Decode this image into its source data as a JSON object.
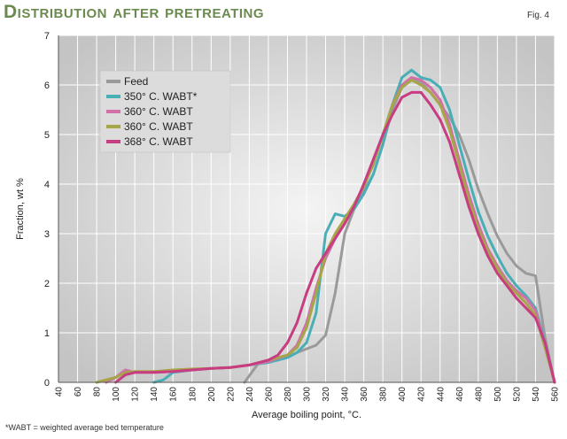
{
  "header": {
    "title": "Distribution after pretreating",
    "figure_label": "Fig. 4"
  },
  "footnote": "*WABT = weighted average bed temperature",
  "colors": {
    "plot_gradient_center": "#f4f4f4",
    "plot_gradient_edge": "#c4c4c4",
    "grid": "#ffffff",
    "title": "#6b8a4f",
    "legend_bg": "#dcdcdc"
  },
  "chart_data": {
    "type": "line",
    "title": "Distribution after pretreating",
    "xlabel": "Average boiling point, °C.",
    "ylabel": "Fraction, wt %",
    "xlim": [
      40,
      560
    ],
    "ylim": [
      0,
      7
    ],
    "x_ticks": [
      "40",
      "60",
      "80",
      "100",
      "120",
      "140",
      "160",
      "180",
      "200",
      "220",
      "240",
      "260",
      "280",
      "300",
      "320",
      "340",
      "360",
      "380",
      "400",
      "420",
      "440",
      "460",
      "480",
      "500",
      "520",
      "540",
      "560"
    ],
    "y_ticks": [
      "0",
      "1",
      "2",
      "3",
      "4",
      "5",
      "6",
      "7"
    ],
    "grid": true,
    "legend_position": "top-left",
    "series": [
      {
        "name": "Feed",
        "color": "#9a9a9a",
        "points": [
          [
            235,
            0
          ],
          [
            250,
            0.4
          ],
          [
            270,
            0.45
          ],
          [
            290,
            0.6
          ],
          [
            310,
            0.75
          ],
          [
            320,
            0.95
          ],
          [
            330,
            1.8
          ],
          [
            340,
            3.0
          ],
          [
            350,
            3.5
          ],
          [
            360,
            3.85
          ],
          [
            370,
            4.2
          ],
          [
            380,
            4.8
          ],
          [
            390,
            5.5
          ],
          [
            400,
            5.95
          ],
          [
            410,
            6.1
          ],
          [
            420,
            6.05
          ],
          [
            430,
            5.85
          ],
          [
            440,
            5.6
          ],
          [
            450,
            5.35
          ],
          [
            460,
            5.0
          ],
          [
            470,
            4.5
          ],
          [
            480,
            3.9
          ],
          [
            490,
            3.4
          ],
          [
            500,
            2.95
          ],
          [
            510,
            2.6
          ],
          [
            520,
            2.35
          ],
          [
            530,
            2.2
          ],
          [
            540,
            2.15
          ],
          [
            550,
            0.9
          ],
          [
            560,
            0
          ]
        ]
      },
      {
        "name": "350° C. WABT*",
        "color": "#4aaeb6",
        "points": [
          [
            140,
            0
          ],
          [
            150,
            0.05
          ],
          [
            160,
            0.2
          ],
          [
            180,
            0.25
          ],
          [
            200,
            0.28
          ],
          [
            220,
            0.3
          ],
          [
            240,
            0.35
          ],
          [
            260,
            0.4
          ],
          [
            280,
            0.5
          ],
          [
            290,
            0.6
          ],
          [
            300,
            0.8
          ],
          [
            310,
            1.4
          ],
          [
            320,
            3.0
          ],
          [
            330,
            3.4
          ],
          [
            340,
            3.35
          ],
          [
            350,
            3.5
          ],
          [
            360,
            3.8
          ],
          [
            370,
            4.2
          ],
          [
            380,
            4.8
          ],
          [
            390,
            5.6
          ],
          [
            400,
            6.15
          ],
          [
            410,
            6.3
          ],
          [
            420,
            6.15
          ],
          [
            430,
            6.1
          ],
          [
            440,
            5.95
          ],
          [
            450,
            5.5
          ],
          [
            460,
            4.8
          ],
          [
            470,
            4.1
          ],
          [
            480,
            3.45
          ],
          [
            490,
            2.95
          ],
          [
            500,
            2.55
          ],
          [
            510,
            2.2
          ],
          [
            520,
            1.95
          ],
          [
            530,
            1.75
          ],
          [
            540,
            1.5
          ],
          [
            550,
            0.8
          ],
          [
            560,
            0
          ]
        ]
      },
      {
        "name": "360° C. WABT",
        "color": "#d070a8",
        "points": [
          [
            90,
            0
          ],
          [
            100,
            0.1
          ],
          [
            110,
            0.25
          ],
          [
            120,
            0.2
          ],
          [
            140,
            0.2
          ],
          [
            160,
            0.22
          ],
          [
            180,
            0.25
          ],
          [
            200,
            0.28
          ],
          [
            220,
            0.3
          ],
          [
            240,
            0.35
          ],
          [
            260,
            0.42
          ],
          [
            280,
            0.55
          ],
          [
            290,
            0.75
          ],
          [
            300,
            1.2
          ],
          [
            310,
            1.9
          ],
          [
            320,
            2.5
          ],
          [
            330,
            2.9
          ],
          [
            340,
            3.3
          ],
          [
            350,
            3.6
          ],
          [
            360,
            3.95
          ],
          [
            370,
            4.4
          ],
          [
            380,
            5.0
          ],
          [
            390,
            5.6
          ],
          [
            400,
            6.0
          ],
          [
            410,
            6.15
          ],
          [
            420,
            6.1
          ],
          [
            430,
            5.95
          ],
          [
            440,
            5.7
          ],
          [
            450,
            5.2
          ],
          [
            460,
            4.5
          ],
          [
            470,
            3.8
          ],
          [
            480,
            3.2
          ],
          [
            490,
            2.7
          ],
          [
            500,
            2.35
          ],
          [
            510,
            2.05
          ],
          [
            520,
            1.85
          ],
          [
            530,
            1.7
          ],
          [
            540,
            1.45
          ],
          [
            550,
            0.75
          ],
          [
            560,
            0
          ]
        ]
      },
      {
        "name": "360° C. WABT",
        "color": "#a6a648",
        "points": [
          [
            80,
            0
          ],
          [
            100,
            0.1
          ],
          [
            110,
            0.2
          ],
          [
            120,
            0.22
          ],
          [
            140,
            0.22
          ],
          [
            160,
            0.25
          ],
          [
            180,
            0.27
          ],
          [
            200,
            0.28
          ],
          [
            220,
            0.3
          ],
          [
            240,
            0.35
          ],
          [
            260,
            0.45
          ],
          [
            280,
            0.55
          ],
          [
            290,
            0.7
          ],
          [
            300,
            1.1
          ],
          [
            310,
            1.8
          ],
          [
            320,
            2.6
          ],
          [
            330,
            3.0
          ],
          [
            340,
            3.3
          ],
          [
            350,
            3.6
          ],
          [
            360,
            3.95
          ],
          [
            370,
            4.4
          ],
          [
            380,
            5.0
          ],
          [
            390,
            5.6
          ],
          [
            400,
            5.95
          ],
          [
            410,
            6.1
          ],
          [
            420,
            6.0
          ],
          [
            430,
            5.85
          ],
          [
            440,
            5.6
          ],
          [
            450,
            5.1
          ],
          [
            460,
            4.4
          ],
          [
            470,
            3.7
          ],
          [
            480,
            3.1
          ],
          [
            490,
            2.65
          ],
          [
            500,
            2.3
          ],
          [
            510,
            2.0
          ],
          [
            520,
            1.8
          ],
          [
            530,
            1.6
          ],
          [
            540,
            1.35
          ],
          [
            550,
            0.7
          ],
          [
            560,
            0
          ]
        ]
      },
      {
        "name": "368° C. WABT",
        "color": "#c83c82",
        "points": [
          [
            100,
            0
          ],
          [
            110,
            0.15
          ],
          [
            120,
            0.2
          ],
          [
            140,
            0.2
          ],
          [
            160,
            0.22
          ],
          [
            180,
            0.25
          ],
          [
            200,
            0.28
          ],
          [
            220,
            0.3
          ],
          [
            240,
            0.35
          ],
          [
            260,
            0.45
          ],
          [
            270,
            0.55
          ],
          [
            280,
            0.8
          ],
          [
            290,
            1.2
          ],
          [
            300,
            1.8
          ],
          [
            310,
            2.3
          ],
          [
            320,
            2.6
          ],
          [
            330,
            2.9
          ],
          [
            340,
            3.2
          ],
          [
            350,
            3.55
          ],
          [
            360,
            4.0
          ],
          [
            370,
            4.5
          ],
          [
            380,
            5.0
          ],
          [
            390,
            5.4
          ],
          [
            400,
            5.75
          ],
          [
            410,
            5.85
          ],
          [
            420,
            5.85
          ],
          [
            430,
            5.6
          ],
          [
            440,
            5.3
          ],
          [
            450,
            4.85
          ],
          [
            460,
            4.2
          ],
          [
            470,
            3.55
          ],
          [
            480,
            3.0
          ],
          [
            490,
            2.55
          ],
          [
            500,
            2.2
          ],
          [
            510,
            1.95
          ],
          [
            520,
            1.7
          ],
          [
            530,
            1.5
          ],
          [
            540,
            1.3
          ],
          [
            550,
            0.8
          ],
          [
            560,
            0
          ]
        ]
      }
    ]
  }
}
